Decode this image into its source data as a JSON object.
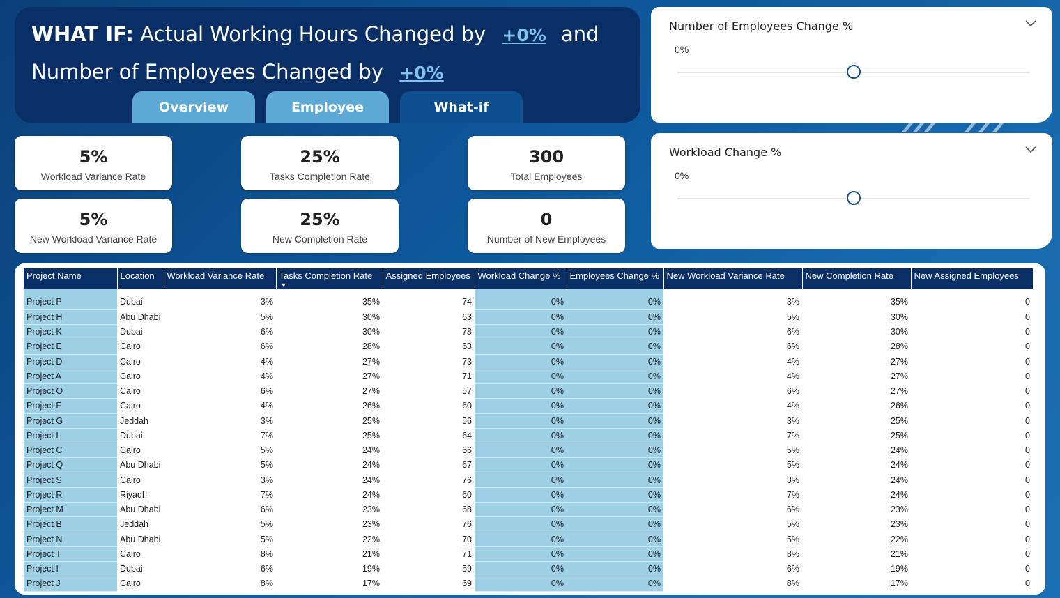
{
  "header": {
    "what_if": "WHAT IF:",
    "line1_text": "Actual Working Hours Changed by",
    "hours_change": "+0%",
    "and": "and",
    "line2_text": "Number of Employees Changed by",
    "employees_change": "+0%"
  },
  "tabs": [
    {
      "label": "Overview"
    },
    {
      "label": "Employee"
    },
    {
      "label": "What-if"
    }
  ],
  "kpis": [
    {
      "value": "5%",
      "label": "Workload Variance Rate"
    },
    {
      "value": "25%",
      "label": "Tasks Completion Rate"
    },
    {
      "value": "300",
      "label": "Total Employees"
    },
    {
      "value": "5%",
      "label": "New Workload Variance Rate"
    },
    {
      "value": "25%",
      "label": "New Completion Rate"
    },
    {
      "value": "0",
      "label": "Number of New Employees"
    }
  ],
  "slicers": [
    {
      "title": "Number of Employees Change %",
      "value": "0%",
      "position": 0.5
    },
    {
      "title": "Workload Change %",
      "value": "0%",
      "position": 0.5
    }
  ],
  "table": {
    "columns": [
      "Project Name",
      "Location",
      "Workload Variance Rate",
      "Tasks Completion Rate",
      "Assigned Employees",
      "Workload Change %",
      "Employees Change %",
      "New Workload Variance Rate",
      "New Completion Rate",
      "New Assigned Employees"
    ],
    "sorted_column": "Tasks Completion Rate",
    "rows": [
      [
        "Project P",
        "Dubai",
        "3%",
        "35%",
        "74",
        "0%",
        "0%",
        "3%",
        "35%",
        "0"
      ],
      [
        "Project H",
        "Abu Dhabi",
        "5%",
        "30%",
        "63",
        "0%",
        "0%",
        "5%",
        "30%",
        "0"
      ],
      [
        "Project K",
        "Dubai",
        "6%",
        "30%",
        "78",
        "0%",
        "0%",
        "6%",
        "30%",
        "0"
      ],
      [
        "Project E",
        "Cairo",
        "6%",
        "28%",
        "63",
        "0%",
        "0%",
        "6%",
        "28%",
        "0"
      ],
      [
        "Project D",
        "Cairo",
        "4%",
        "27%",
        "73",
        "0%",
        "0%",
        "4%",
        "27%",
        "0"
      ],
      [
        "Project A",
        "Cairo",
        "4%",
        "27%",
        "71",
        "0%",
        "0%",
        "4%",
        "27%",
        "0"
      ],
      [
        "Project O",
        "Cairo",
        "6%",
        "27%",
        "57",
        "0%",
        "0%",
        "6%",
        "27%",
        "0"
      ],
      [
        "Project F",
        "Cairo",
        "4%",
        "26%",
        "60",
        "0%",
        "0%",
        "4%",
        "26%",
        "0"
      ],
      [
        "Project G",
        "Jeddah",
        "3%",
        "25%",
        "56",
        "0%",
        "0%",
        "3%",
        "25%",
        "0"
      ],
      [
        "Project L",
        "Dubai",
        "7%",
        "25%",
        "64",
        "0%",
        "0%",
        "7%",
        "25%",
        "0"
      ],
      [
        "Project C",
        "Cairo",
        "5%",
        "24%",
        "66",
        "0%",
        "0%",
        "5%",
        "24%",
        "0"
      ],
      [
        "Project Q",
        "Abu Dhabi",
        "5%",
        "24%",
        "67",
        "0%",
        "0%",
        "5%",
        "24%",
        "0"
      ],
      [
        "Project S",
        "Cairo",
        "3%",
        "24%",
        "76",
        "0%",
        "0%",
        "3%",
        "24%",
        "0"
      ],
      [
        "Project R",
        "Riyadh",
        "7%",
        "24%",
        "60",
        "0%",
        "0%",
        "7%",
        "24%",
        "0"
      ],
      [
        "Project M",
        "Abu Dhabi",
        "6%",
        "23%",
        "68",
        "0%",
        "0%",
        "6%",
        "23%",
        "0"
      ],
      [
        "Project B",
        "Jeddah",
        "5%",
        "23%",
        "76",
        "0%",
        "0%",
        "5%",
        "23%",
        "0"
      ],
      [
        "Project N",
        "Abu Dhabi",
        "5%",
        "22%",
        "70",
        "0%",
        "0%",
        "5%",
        "22%",
        "0"
      ],
      [
        "Project T",
        "Cairo",
        "8%",
        "21%",
        "71",
        "0%",
        "0%",
        "8%",
        "21%",
        "0"
      ],
      [
        "Project I",
        "Dubai",
        "6%",
        "19%",
        "59",
        "0%",
        "0%",
        "6%",
        "19%",
        "0"
      ],
      [
        "Project J",
        "Cairo",
        "8%",
        "17%",
        "69",
        "0%",
        "0%",
        "8%",
        "17%",
        "0"
      ]
    ]
  },
  "colors": {
    "navy": "#0a2f66",
    "tab_light": "#5eaad6",
    "tab_active": "#0d4f8e",
    "highlight_cell": "#9ed0e6",
    "accent_text": "#7ec4ef"
  }
}
